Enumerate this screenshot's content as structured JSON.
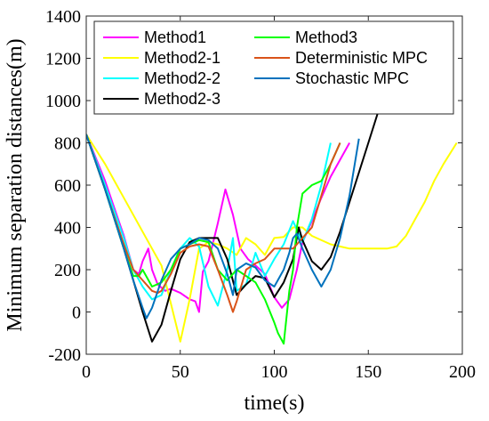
{
  "chart_data": {
    "type": "line",
    "title": "",
    "xlabel": "time(s)",
    "ylabel": "Minimum separation distances(m)",
    "xlim": [
      0,
      200
    ],
    "ylim": [
      -200,
      1400
    ],
    "xticks": [
      0,
      50,
      100,
      150,
      200
    ],
    "yticks": [
      -200,
      0,
      200,
      400,
      600,
      800,
      1000,
      1200,
      1400
    ],
    "grid": false,
    "legend_position": "top",
    "series": [
      {
        "name": "Method1",
        "color": "#ff00ff",
        "x": [
          0,
          10,
          20,
          25,
          28,
          30,
          33,
          35,
          38,
          42,
          45,
          50,
          55,
          58,
          60,
          62,
          65,
          70,
          74,
          78,
          82,
          86,
          90,
          95,
          100,
          104,
          108,
          112,
          115,
          120,
          125,
          130,
          135,
          140
        ],
        "y": [
          840,
          620,
          360,
          200,
          180,
          240,
          300,
          200,
          130,
          100,
          110,
          90,
          60,
          50,
          0,
          190,
          240,
          420,
          580,
          460,
          300,
          250,
          220,
          180,
          70,
          20,
          60,
          200,
          330,
          430,
          540,
          640,
          720,
          800
        ]
      },
      {
        "name": "Method2-1",
        "color": "#ffff00",
        "x": [
          0,
          10,
          20,
          30,
          40,
          50,
          55,
          60,
          65,
          70,
          75,
          80,
          85,
          90,
          95,
          100,
          105,
          110,
          115,
          120,
          130,
          140,
          150,
          160,
          165,
          170,
          175,
          180,
          185,
          190,
          197
        ],
        "y": [
          840,
          700,
          540,
          380,
          220,
          -140,
          60,
          300,
          330,
          320,
          300,
          270,
          350,
          320,
          270,
          350,
          355,
          400,
          400,
          360,
          320,
          300,
          300,
          300,
          310,
          360,
          440,
          520,
          620,
          700,
          800
        ]
      },
      {
        "name": "Method2-2",
        "color": "#00ffff",
        "x": [
          0,
          10,
          20,
          25,
          30,
          35,
          40,
          45,
          50,
          55,
          60,
          65,
          70,
          75,
          78,
          80,
          85,
          90,
          95,
          100,
          105,
          110,
          115,
          120,
          125,
          130
        ],
        "y": [
          840,
          600,
          350,
          200,
          120,
          60,
          80,
          200,
          300,
          350,
          310,
          120,
          30,
          200,
          350,
          100,
          130,
          280,
          170,
          250,
          320,
          430,
          330,
          440,
          600,
          800
        ]
      },
      {
        "name": "Method2-3",
        "color": "#000000",
        "x": [
          0,
          10,
          20,
          25,
          30,
          35,
          40,
          45,
          50,
          55,
          60,
          65,
          70,
          75,
          80,
          85,
          90,
          95,
          100,
          105,
          110,
          113,
          115,
          120,
          125,
          130,
          135,
          140,
          145,
          150,
          155
        ],
        "y": [
          840,
          580,
          300,
          150,
          0,
          -140,
          -60,
          100,
          250,
          330,
          350,
          350,
          350,
          250,
          80,
          130,
          170,
          160,
          70,
          140,
          250,
          400,
          340,
          240,
          200,
          260,
          380,
          520,
          660,
          800,
          940
        ]
      },
      {
        "name": "Method3",
        "color": "#00ff00",
        "x": [
          0,
          10,
          20,
          25,
          28,
          30,
          35,
          40,
          45,
          50,
          55,
          60,
          65,
          70,
          75,
          80,
          85,
          90,
          95,
          100,
          102,
          105,
          108,
          110,
          112,
          115,
          120,
          125,
          130,
          135
        ],
        "y": [
          840,
          580,
          300,
          170,
          170,
          200,
          120,
          140,
          200,
          300,
          320,
          340,
          330,
          200,
          150,
          200,
          170,
          140,
          60,
          -50,
          -100,
          -150,
          100,
          200,
          400,
          560,
          600,
          620,
          700,
          800
        ]
      },
      {
        "name": "Deterministic MPC",
        "color": "#d95319",
        "x": [
          0,
          10,
          20,
          25,
          30,
          35,
          38,
          40,
          45,
          50,
          55,
          60,
          65,
          70,
          75,
          78,
          80,
          85,
          90,
          95,
          100,
          105,
          110,
          115,
          120,
          125,
          130,
          135
        ],
        "y": [
          840,
          580,
          320,
          200,
          150,
          100,
          90,
          100,
          180,
          280,
          310,
          320,
          310,
          200,
          80,
          0,
          50,
          200,
          230,
          250,
          300,
          300,
          300,
          350,
          400,
          550,
          700,
          800
        ]
      },
      {
        "name": "Stochastic MPC",
        "color": "#0072bd",
        "x": [
          0,
          10,
          20,
          25,
          30,
          32,
          35,
          40,
          45,
          50,
          55,
          60,
          65,
          70,
          75,
          78,
          80,
          85,
          90,
          95,
          100,
          105,
          108,
          110,
          112,
          115,
          120,
          125,
          130,
          135,
          140,
          145
        ],
        "y": [
          840,
          580,
          300,
          150,
          20,
          -30,
          20,
          150,
          250,
          300,
          320,
          350,
          340,
          300,
          180,
          80,
          200,
          230,
          210,
          150,
          120,
          200,
          280,
          350,
          370,
          300,
          200,
          120,
          200,
          350,
          550,
          820
        ]
      }
    ]
  }
}
